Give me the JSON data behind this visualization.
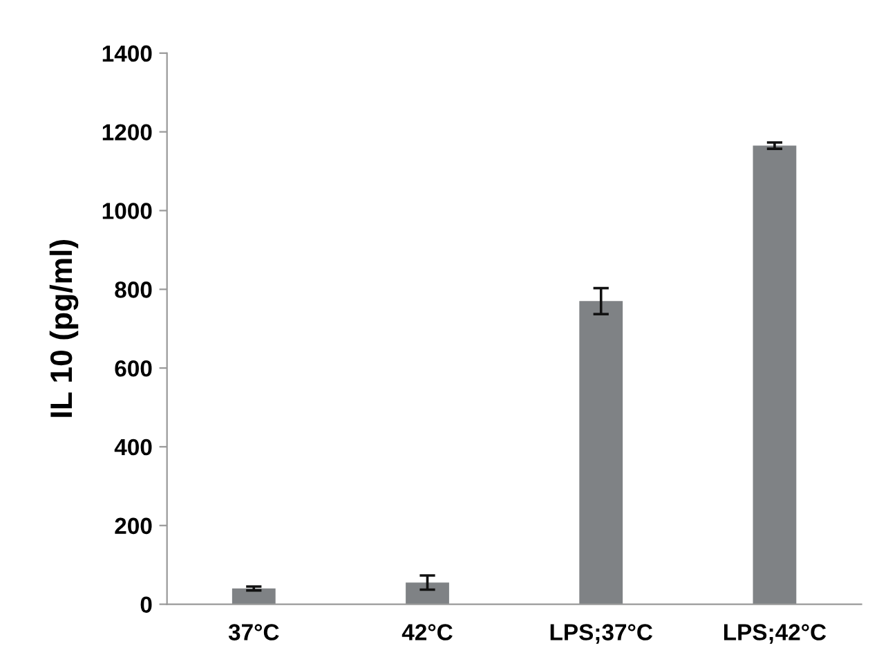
{
  "chart_data": {
    "type": "bar",
    "ylabel": "IL 10 (pg/ml)",
    "categories": [
      "37°C",
      "42°C",
      "LPS;37°C",
      "LPS;42°C"
    ],
    "values": [
      40,
      55,
      770,
      1165
    ],
    "errors": [
      5,
      18,
      33,
      8
    ],
    "color": "#7f8285",
    "ylim": [
      0,
      1400
    ],
    "yticks": [
      0,
      200,
      400,
      600,
      800,
      1000,
      1200,
      1400
    ],
    "grid": false
  }
}
